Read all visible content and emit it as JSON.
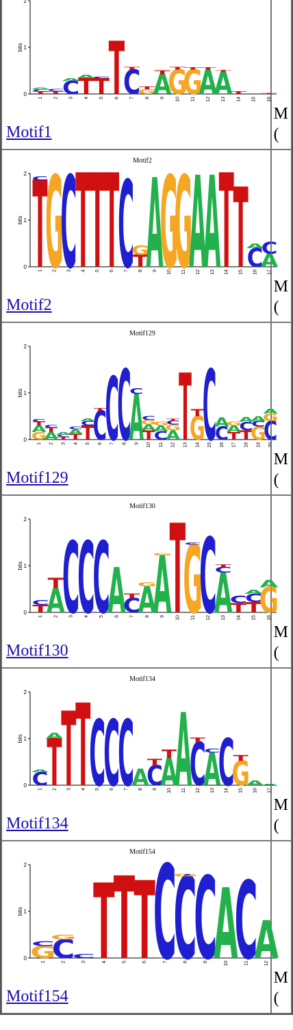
{
  "axis": {
    "ylabel": "bits",
    "ticks": [
      "0",
      "1",
      "2"
    ]
  },
  "colors": {
    "A": "#22b14c",
    "C": "#1f1fd0",
    "G": "#f5a623",
    "T": "#d01010"
  },
  "side_text": [
    "M",
    "("
  ],
  "motifs": [
    {
      "link": "Motif1",
      "title": "",
      "positions": [
        [
          [
            "T",
            0.05
          ],
          [
            "C",
            0.05
          ],
          [
            "A",
            0.04
          ]
        ],
        [
          [
            "T",
            0.06
          ],
          [
            "C",
            0.05
          ]
        ],
        [
          [
            "C",
            0.28
          ],
          [
            "A",
            0.06
          ]
        ],
        [
          [
            "T",
            0.34
          ],
          [
            "A",
            0.07
          ]
        ],
        [
          [
            "T",
            0.34
          ],
          [
            "C",
            0.04
          ]
        ],
        [
          [
            "T",
            1.12
          ]
        ],
        [
          [
            "C",
            0.52
          ],
          [
            "T",
            0.06
          ]
        ],
        [
          [
            "G",
            0.1
          ],
          [
            "T",
            0.06
          ]
        ],
        [
          [
            "A",
            0.42
          ],
          [
            "T",
            0.08
          ]
        ],
        [
          [
            "G",
            0.52
          ],
          [
            "T",
            0.06
          ]
        ],
        [
          [
            "G",
            0.52
          ],
          [
            "T",
            0.05
          ]
        ],
        [
          [
            "A",
            0.52
          ],
          [
            "T",
            0.05
          ]
        ],
        [
          [
            "A",
            0.48
          ],
          [
            "T",
            0.04
          ]
        ],
        [
          [
            "T",
            0.06
          ]
        ],
        [],
        [
          [
            "T",
            0.02
          ]
        ]
      ]
    },
    {
      "link": "Motif2",
      "title": "Motif2",
      "positions": [
        [
          [
            "T",
            1.85
          ],
          [
            "C",
            0.08
          ]
        ],
        [
          [
            "G",
            1.95
          ]
        ],
        [
          [
            "C",
            1.95
          ]
        ],
        [
          [
            "T",
            2.0
          ]
        ],
        [
          [
            "T",
            2.0
          ]
        ],
        [
          [
            "T",
            2.0
          ]
        ],
        [
          [
            "C",
            1.85
          ]
        ],
        [
          [
            "T",
            0.26
          ],
          [
            "G",
            0.2
          ]
        ],
        [
          [
            "A",
            1.9
          ]
        ],
        [
          [
            "G",
            1.95
          ]
        ],
        [
          [
            "G",
            1.95
          ]
        ],
        [
          [
            "A",
            1.95
          ]
        ],
        [
          [
            "A",
            1.95
          ]
        ],
        [
          [
            "T",
            2.0
          ]
        ],
        [
          [
            "T",
            1.7
          ]
        ],
        [
          [
            "C",
            0.4
          ],
          [
            "A",
            0.1
          ]
        ],
        [
          [
            "A",
            0.28
          ],
          [
            "C",
            0.25
          ]
        ]
      ]
    },
    {
      "link": "Motif129",
      "title": "Motif129",
      "positions": [
        [
          [
            "G",
            0.16
          ],
          [
            "A",
            0.14
          ],
          [
            "T",
            0.08
          ],
          [
            "C",
            0.06
          ]
        ],
        [
          [
            "A",
            0.16
          ],
          [
            "T",
            0.1
          ],
          [
            "C",
            0.06
          ]
        ],
        [
          [
            "T",
            0.06
          ],
          [
            "C",
            0.05
          ],
          [
            "A",
            0.05
          ]
        ],
        [
          [
            "T",
            0.12
          ],
          [
            "A",
            0.1
          ],
          [
            "C",
            0.06
          ]
        ],
        [
          [
            "T",
            0.3
          ],
          [
            "C",
            0.1
          ],
          [
            "A",
            0.06
          ]
        ],
        [
          [
            "C",
            0.62
          ],
          [
            "T",
            0.06
          ]
        ],
        [
          [
            "C",
            1.35
          ]
        ],
        [
          [
            "C",
            1.5
          ]
        ],
        [
          [
            "A",
            0.98
          ],
          [
            "C",
            0.12
          ]
        ],
        [
          [
            "T",
            0.2
          ],
          [
            "A",
            0.12
          ],
          [
            "G",
            0.1
          ],
          [
            "C",
            0.08
          ]
        ],
        [
          [
            "C",
            0.18
          ],
          [
            "A",
            0.12
          ],
          [
            "G",
            0.08
          ]
        ],
        [
          [
            "A",
            0.2
          ],
          [
            "G",
            0.12
          ],
          [
            "C",
            0.08
          ],
          [
            "T",
            0.05
          ]
        ],
        [
          [
            "T",
            1.42
          ]
        ],
        [
          [
            "G",
            0.5
          ],
          [
            "T",
            0.15
          ]
        ],
        [
          [
            "C",
            1.5
          ]
        ],
        [
          [
            "C",
            0.28
          ],
          [
            "A",
            0.2
          ]
        ],
        [
          [
            "T",
            0.16
          ],
          [
            "A",
            0.14
          ],
          [
            "G",
            0.08
          ]
        ],
        [
          [
            "T",
            0.2
          ],
          [
            "C",
            0.18
          ],
          [
            "A",
            0.1
          ]
        ],
        [
          [
            "G",
            0.28
          ],
          [
            "C",
            0.12
          ],
          [
            "A",
            0.1
          ]
        ],
        [
          [
            "C",
            0.4
          ],
          [
            "G",
            0.16
          ],
          [
            "A",
            0.1
          ]
        ]
      ]
    },
    {
      "link": "Motif130",
      "title": "Motif130",
      "positions": [
        [
          [
            "T",
            0.16
          ],
          [
            "C",
            0.1
          ]
        ],
        [
          [
            "A",
            0.52
          ],
          [
            "T",
            0.22
          ]
        ],
        [
          [
            "C",
            1.52
          ]
        ],
        [
          [
            "C",
            1.52
          ]
        ],
        [
          [
            "C",
            1.52
          ]
        ],
        [
          [
            "A",
            0.96
          ]
        ],
        [
          [
            "C",
            0.3
          ],
          [
            "T",
            0.1
          ]
        ],
        [
          [
            "A",
            0.56
          ],
          [
            "G",
            0.08
          ]
        ],
        [
          [
            "A",
            1.22
          ],
          [
            "G",
            0.05
          ]
        ],
        [
          [
            "T",
            1.9
          ]
        ],
        [
          [
            "G",
            1.45
          ],
          [
            "C",
            0.05
          ]
        ],
        [
          [
            "C",
            1.6
          ]
        ],
        [
          [
            "A",
            0.85
          ],
          [
            "C",
            0.12
          ],
          [
            "T",
            0.06
          ]
        ],
        [
          [
            "T",
            0.2
          ],
          [
            "C",
            0.16
          ]
        ],
        [
          [
            "T",
            0.22
          ],
          [
            "C",
            0.18
          ],
          [
            "A",
            0.08
          ]
        ],
        [
          [
            "G",
            0.54
          ],
          [
            "A",
            0.16
          ]
        ]
      ]
    },
    {
      "link": "Motif134",
      "title": "Motif134",
      "positions": [
        [
          [
            "C",
            0.28
          ],
          [
            "A",
            0.06
          ]
        ],
        [
          [
            "T",
            1.0
          ],
          [
            "A",
            0.12
          ]
        ],
        [
          [
            "T",
            1.58
          ]
        ],
        [
          [
            "T",
            1.75
          ]
        ],
        [
          [
            "C",
            1.4
          ]
        ],
        [
          [
            "C",
            1.4
          ]
        ],
        [
          [
            "C",
            1.4
          ]
        ],
        [
          [
            "A",
            0.35
          ]
        ],
        [
          [
            "C",
            0.42
          ],
          [
            "T",
            0.14
          ]
        ],
        [
          [
            "A",
            0.58
          ],
          [
            "T",
            0.18
          ]
        ],
        [
          [
            "A",
            1.55
          ]
        ],
        [
          [
            "C",
            0.92
          ],
          [
            "T",
            0.1
          ]
        ],
        [
          [
            "A",
            0.7
          ],
          [
            "C",
            0.08
          ]
        ],
        [
          [
            "C",
            1.0
          ]
        ],
        [
          [
            "G",
            0.52
          ],
          [
            "T",
            0.12
          ]
        ],
        [
          [
            "A",
            0.1
          ]
        ],
        [
          [
            "A",
            0.03
          ]
        ]
      ]
    },
    {
      "link": "Motif154",
      "title": "Motif154",
      "positions": [
        [
          [
            "G",
            0.26
          ],
          [
            "C",
            0.1
          ]
        ],
        [
          [
            "C",
            0.4
          ],
          [
            "G",
            0.1
          ]
        ],
        [
          [
            "C",
            0.08
          ]
        ],
        [
          [
            "T",
            1.6
          ]
        ],
        [
          [
            "T",
            1.75
          ]
        ],
        [
          [
            "T",
            1.65
          ]
        ],
        [
          [
            "C",
            2.0
          ]
        ],
        [
          [
            "C",
            1.75
          ],
          [
            "G",
            0.06
          ]
        ],
        [
          [
            "C",
            1.75
          ]
        ],
        [
          [
            "A",
            1.5
          ]
        ],
        [
          [
            "C",
            1.65
          ]
        ],
        [
          [
            "A",
            0.8
          ]
        ]
      ]
    }
  ]
}
